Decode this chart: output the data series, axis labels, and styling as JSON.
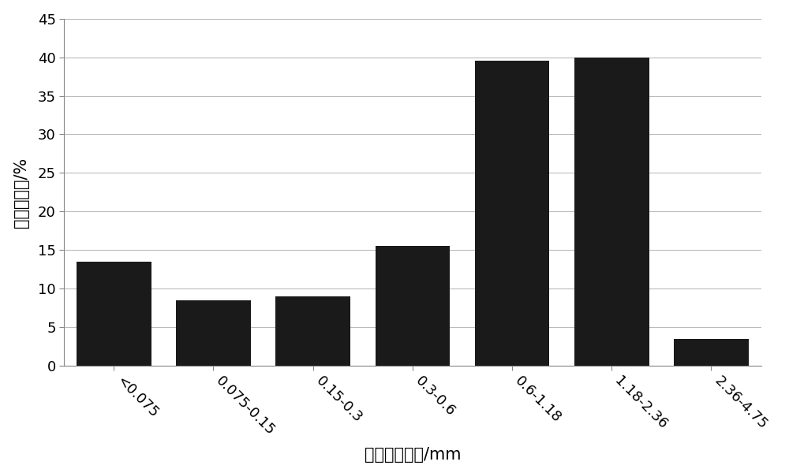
{
  "categories": [
    "<0.075",
    "0.075-0.15",
    "0.15-0.3",
    "0.3-0.6",
    "0.6-1.18",
    "1.18-2.36",
    "2.36-4.75"
  ],
  "values": [
    13.5,
    8.5,
    9.0,
    15.5,
    39.5,
    40.0,
    3.5
  ],
  "bar_color": "#1a1a1a",
  "xlabel": "粉尘颜粒粒径/mm",
  "ylabel": "阻塞百分率/%",
  "ylim": [
    0,
    45
  ],
  "yticks": [
    0,
    5,
    10,
    15,
    20,
    25,
    30,
    35,
    40,
    45
  ],
  "background_color": "#ffffff",
  "grid_color": "#bbbbbb",
  "xlabel_fontsize": 15,
  "ylabel_fontsize": 15,
  "tick_fontsize": 13,
  "bar_width": 0.75,
  "figsize": [
    10.0,
    5.95
  ],
  "dpi": 100
}
